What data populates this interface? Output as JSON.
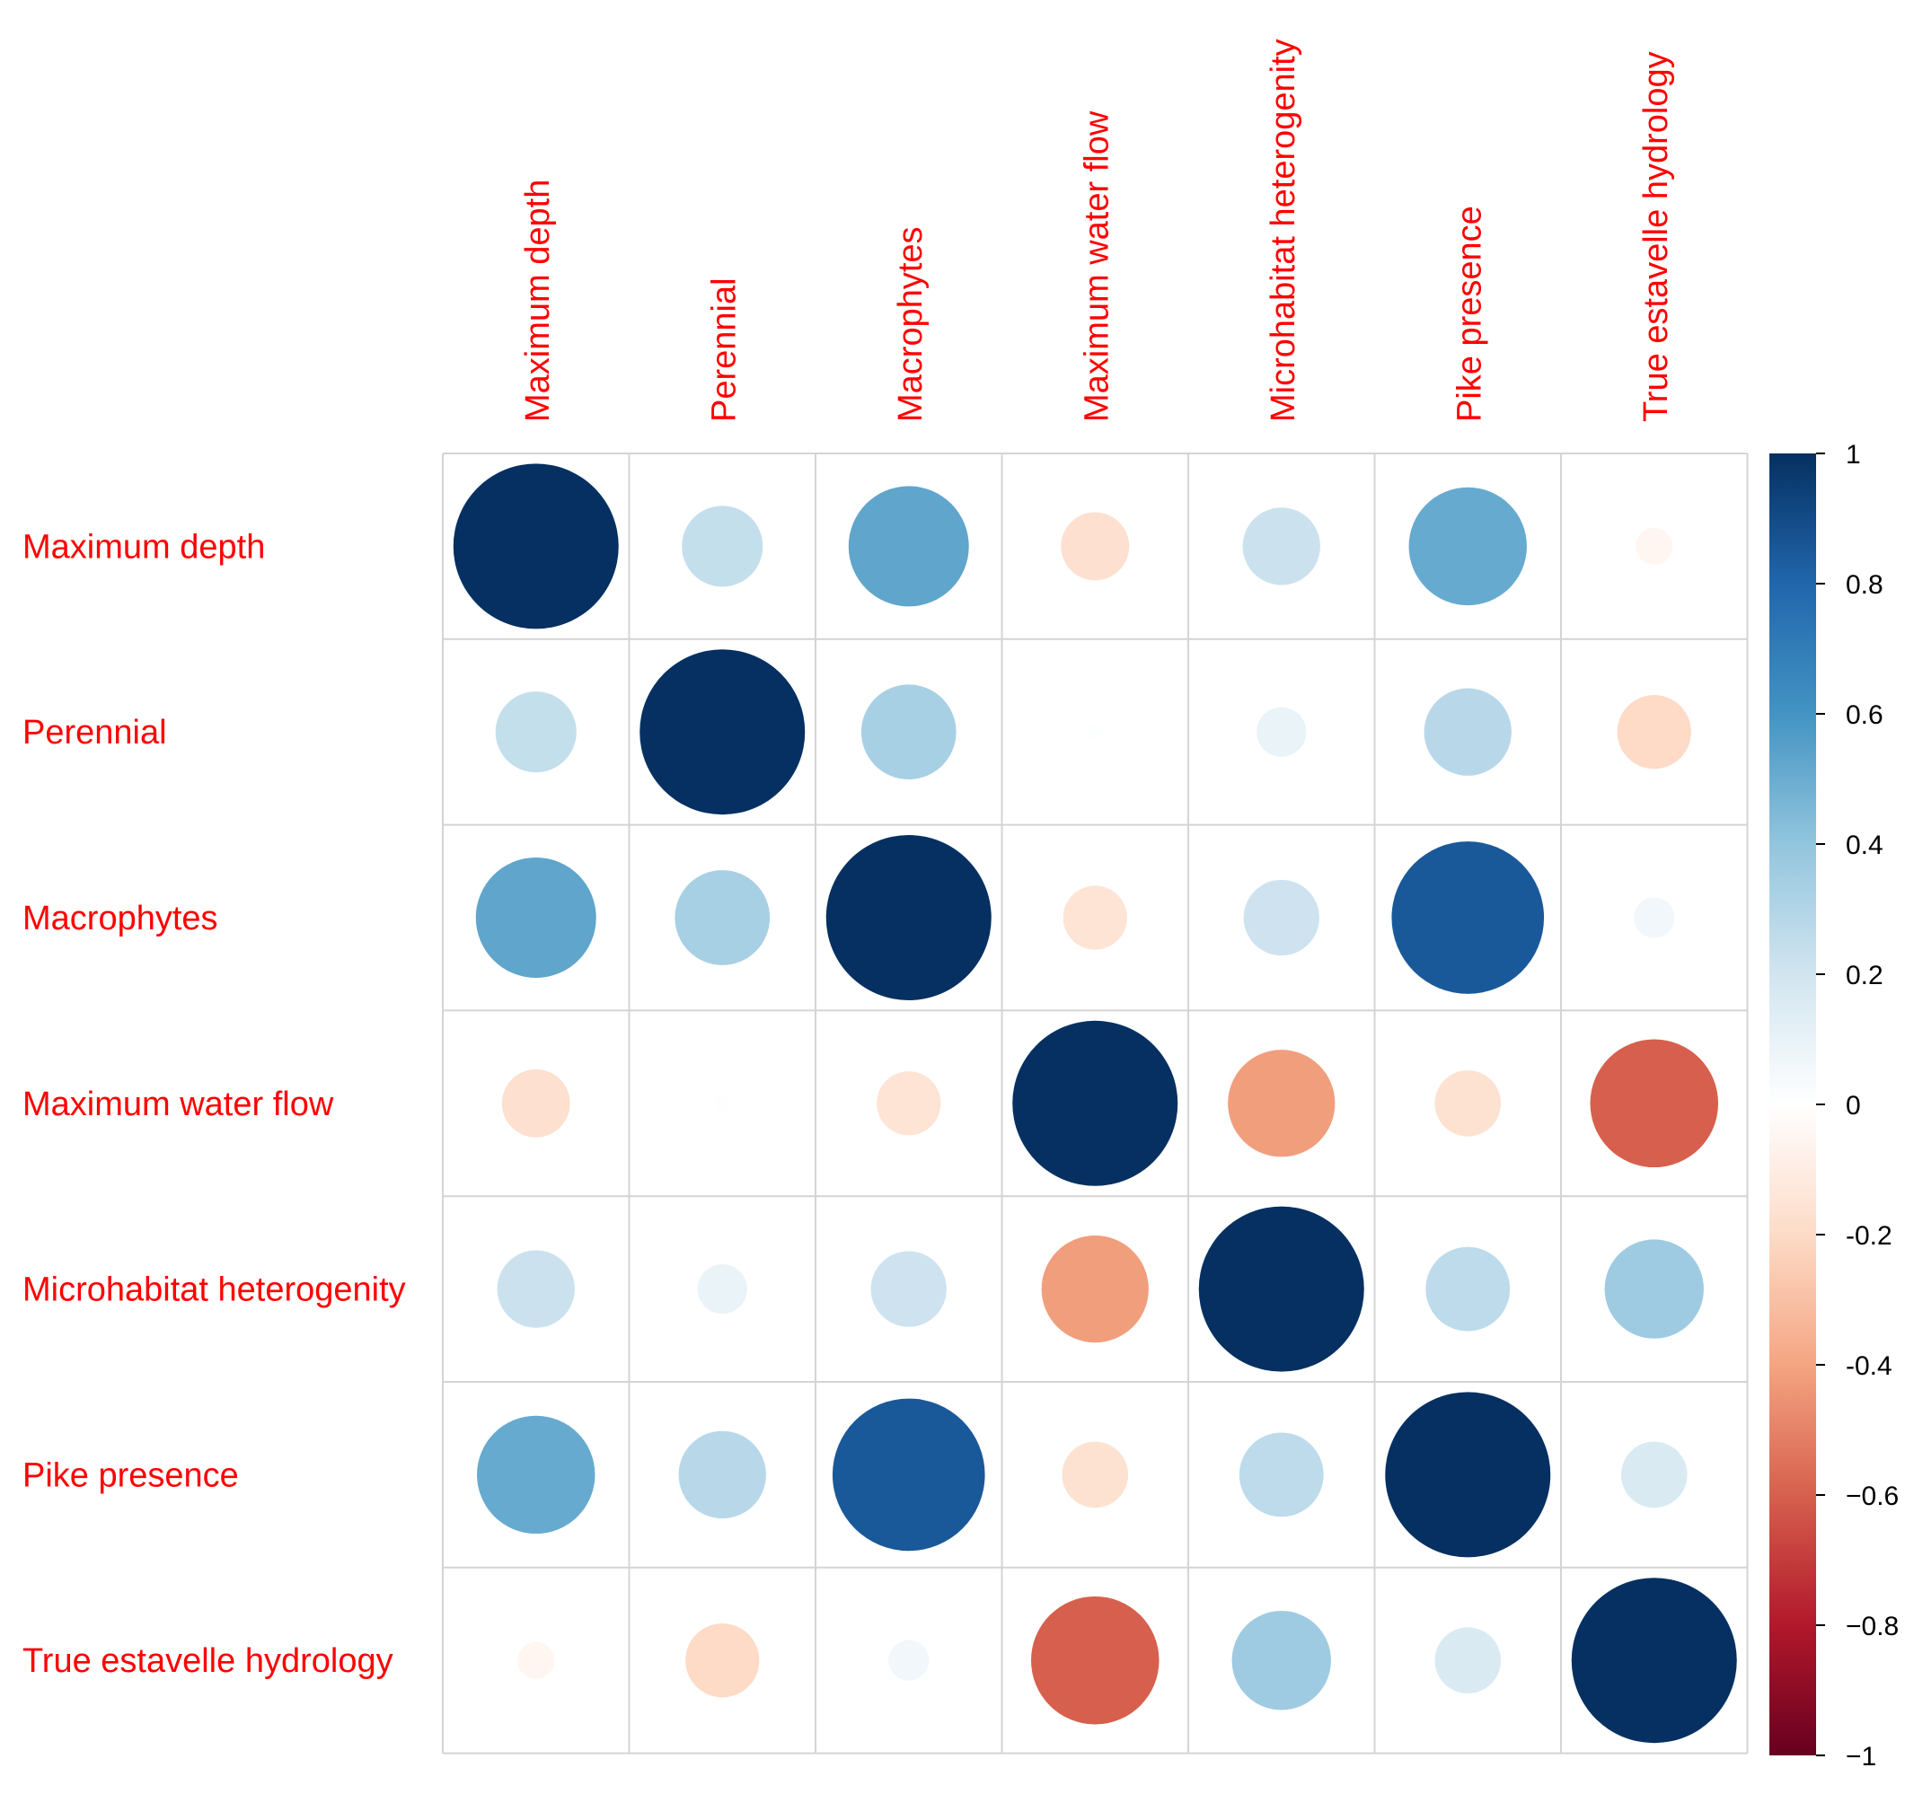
{
  "chart_data": {
    "type": "heatmap",
    "subtype": "correlation-circle-matrix",
    "variables": [
      "Maximum depth",
      "Perennial",
      "Macrophytes",
      "Maximum water flow",
      "Microhabitat heterogenity",
      "Pike presence",
      "True estavelle hydrology"
    ],
    "matrix": [
      [
        1.0,
        0.24,
        0.53,
        -0.17,
        0.22,
        0.51,
        -0.05
      ],
      [
        0.24,
        1.0,
        0.33,
        0.01,
        0.09,
        0.28,
        -0.2
      ],
      [
        0.53,
        0.33,
        1.0,
        -0.15,
        0.21,
        0.85,
        0.06
      ],
      [
        -0.17,
        0.01,
        -0.15,
        1.0,
        -0.42,
        -0.16,
        -0.6
      ],
      [
        0.22,
        0.09,
        0.21,
        -0.42,
        1.0,
        0.26,
        0.36
      ],
      [
        0.51,
        0.28,
        0.85,
        -0.16,
        0.26,
        1.0,
        0.16
      ],
      [
        -0.05,
        -0.2,
        0.06,
        -0.6,
        0.36,
        0.16,
        1.0
      ]
    ],
    "color_scale": {
      "range": [
        -1,
        1
      ],
      "ticks": [
        1,
        0.8,
        0.6,
        0.4,
        0.2,
        0,
        -0.2,
        -0.4,
        -0.6,
        -0.8,
        -1
      ],
      "tick_labels": [
        "1",
        "0.8",
        "0.6",
        "0.4",
        "0.2",
        "0",
        "-0.2",
        "-0.4",
        "−0.6",
        "−0.8",
        "−1"
      ],
      "stops": [
        {
          "v": -1.0,
          "color": "#67001f"
        },
        {
          "v": -0.8,
          "color": "#b2182b"
        },
        {
          "v": -0.6,
          "color": "#d6604d"
        },
        {
          "v": -0.4,
          "color": "#f4a582"
        },
        {
          "v": -0.2,
          "color": "#fddbc7"
        },
        {
          "v": 0.0,
          "color": "#ffffff"
        },
        {
          "v": 0.2,
          "color": "#d1e5f0"
        },
        {
          "v": 0.4,
          "color": "#92c5de"
        },
        {
          "v": 0.6,
          "color": "#4393c3"
        },
        {
          "v": 0.8,
          "color": "#2166ac"
        },
        {
          "v": 1.0,
          "color": "#053061"
        }
      ]
    },
    "label_color": "#ff0000",
    "grid_color": "#d4d4d4",
    "legend_position": "right"
  }
}
